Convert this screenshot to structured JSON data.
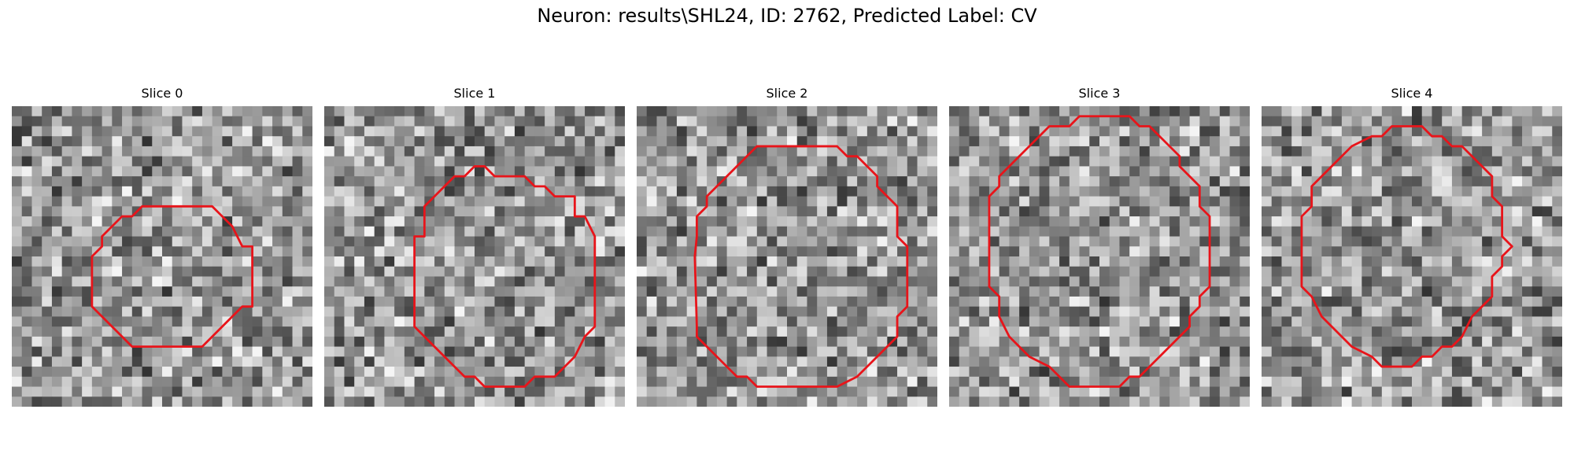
{
  "figure": {
    "title": "Neuron: results\\SHL24, ID: 2762, Predicted Label: CV"
  },
  "panels": [
    {
      "title": "Slice 0",
      "seed": 11,
      "contour": [
        [
          0.2667,
          0.6
        ],
        [
          0.2667,
          0.5
        ],
        [
          0.3,
          0.4667
        ],
        [
          0.3,
          0.4333
        ],
        [
          0.3333,
          0.4
        ],
        [
          0.3667,
          0.3667
        ],
        [
          0.4,
          0.3667
        ],
        [
          0.4333,
          0.3333
        ],
        [
          0.5333,
          0.3333
        ],
        [
          0.6,
          0.3333
        ],
        [
          0.6667,
          0.3333
        ],
        [
          0.7,
          0.3667
        ],
        [
          0.7333,
          0.4
        ],
        [
          0.7667,
          0.4667
        ],
        [
          0.8,
          0.4667
        ],
        [
          0.8,
          0.6667
        ],
        [
          0.7667,
          0.6667
        ],
        [
          0.7333,
          0.7
        ],
        [
          0.7,
          0.7333
        ],
        [
          0.6667,
          0.7667
        ],
        [
          0.6333,
          0.8
        ],
        [
          0.5,
          0.8
        ],
        [
          0.4,
          0.8
        ],
        [
          0.3667,
          0.7667
        ],
        [
          0.3333,
          0.7333
        ],
        [
          0.3,
          0.7
        ],
        [
          0.2667,
          0.6667
        ]
      ]
    },
    {
      "title": "Slice 1",
      "seed": 23,
      "contour": [
        [
          0.3,
          0.6
        ],
        [
          0.3,
          0.4333
        ],
        [
          0.3333,
          0.4333
        ],
        [
          0.3333,
          0.3333
        ],
        [
          0.3667,
          0.3
        ],
        [
          0.4,
          0.2667
        ],
        [
          0.4333,
          0.2333
        ],
        [
          0.4667,
          0.2333
        ],
        [
          0.5,
          0.2
        ],
        [
          0.5333,
          0.2
        ],
        [
          0.5667,
          0.2333
        ],
        [
          0.6667,
          0.2333
        ],
        [
          0.7,
          0.2667
        ],
        [
          0.7333,
          0.2667
        ],
        [
          0.7667,
          0.3
        ],
        [
          0.8333,
          0.3
        ],
        [
          0.8333,
          0.3667
        ],
        [
          0.8667,
          0.3667
        ],
        [
          0.9,
          0.4333
        ],
        [
          0.9,
          0.5
        ],
        [
          0.9,
          0.5333
        ],
        [
          0.9,
          0.7333
        ],
        [
          0.8667,
          0.7667
        ],
        [
          0.8333,
          0.8333
        ],
        [
          0.8,
          0.8667
        ],
        [
          0.7667,
          0.9
        ],
        [
          0.7,
          0.9
        ],
        [
          0.6667,
          0.9333
        ],
        [
          0.5333,
          0.9333
        ],
        [
          0.5,
          0.9
        ],
        [
          0.4667,
          0.9
        ],
        [
          0.4333,
          0.8667
        ],
        [
          0.4,
          0.8333
        ],
        [
          0.3667,
          0.8
        ],
        [
          0.3333,
          0.7667
        ],
        [
          0.3,
          0.7333
        ]
      ]
    },
    {
      "title": "Slice 2",
      "seed": 37,
      "contour": [
        [
          0.2,
          0.4333
        ],
        [
          0.2,
          0.3667
        ],
        [
          0.2333,
          0.3333
        ],
        [
          0.2333,
          0.3
        ],
        [
          0.2667,
          0.2667
        ],
        [
          0.3,
          0.2333
        ],
        [
          0.3333,
          0.2
        ],
        [
          0.3667,
          0.1667
        ],
        [
          0.4,
          0.1333
        ],
        [
          0.4333,
          0.1333
        ],
        [
          0.4667,
          0.1333
        ],
        [
          0.6667,
          0.1333
        ],
        [
          0.7,
          0.1667
        ],
        [
          0.7333,
          0.1667
        ],
        [
          0.7667,
          0.2
        ],
        [
          0.8,
          0.2333
        ],
        [
          0.8,
          0.2667
        ],
        [
          0.8333,
          0.3
        ],
        [
          0.8667,
          0.3333
        ],
        [
          0.8667,
          0.4333
        ],
        [
          0.9,
          0.4667
        ],
        [
          0.9,
          0.6667
        ],
        [
          0.8667,
          0.7
        ],
        [
          0.8667,
          0.7667
        ],
        [
          0.8333,
          0.8
        ],
        [
          0.8,
          0.8333
        ],
        [
          0.7667,
          0.8667
        ],
        [
          0.7333,
          0.9
        ],
        [
          0.6667,
          0.9333
        ],
        [
          0.5333,
          0.9333
        ],
        [
          0.4,
          0.9333
        ],
        [
          0.3667,
          0.9
        ],
        [
          0.3333,
          0.9
        ],
        [
          0.3,
          0.8667
        ],
        [
          0.2667,
          0.8333
        ],
        [
          0.2333,
          0.8
        ],
        [
          0.2,
          0.7667
        ],
        [
          0.2,
          0.7333
        ],
        [
          0.1933,
          0.5
        ]
      ]
    },
    {
      "title": "Slice 3",
      "seed": 53,
      "contour": [
        [
          0.1333,
          0.5667
        ],
        [
          0.1333,
          0.3
        ],
        [
          0.1667,
          0.2667
        ],
        [
          0.1667,
          0.2333
        ],
        [
          0.2,
          0.2
        ],
        [
          0.2333,
          0.1667
        ],
        [
          0.2667,
          0.1333
        ],
        [
          0.3,
          0.1
        ],
        [
          0.3333,
          0.0667
        ],
        [
          0.4,
          0.0667
        ],
        [
          0.4333,
          0.0333
        ],
        [
          0.6,
          0.0333
        ],
        [
          0.6333,
          0.0667
        ],
        [
          0.6667,
          0.0667
        ],
        [
          0.7,
          0.1
        ],
        [
          0.7333,
          0.1333
        ],
        [
          0.7667,
          0.1667
        ],
        [
          0.7667,
          0.2
        ],
        [
          0.8,
          0.2333
        ],
        [
          0.8333,
          0.2667
        ],
        [
          0.8333,
          0.3333
        ],
        [
          0.8667,
          0.3667
        ],
        [
          0.8667,
          0.6
        ],
        [
          0.8333,
          0.6333
        ],
        [
          0.8333,
          0.6667
        ],
        [
          0.8,
          0.7
        ],
        [
          0.8,
          0.7333
        ],
        [
          0.7667,
          0.7667
        ],
        [
          0.7333,
          0.8
        ],
        [
          0.7,
          0.8333
        ],
        [
          0.6667,
          0.8667
        ],
        [
          0.6333,
          0.9
        ],
        [
          0.6,
          0.9
        ],
        [
          0.5667,
          0.9333
        ],
        [
          0.4,
          0.9333
        ],
        [
          0.3667,
          0.9
        ],
        [
          0.3333,
          0.8667
        ],
        [
          0.2667,
          0.8333
        ],
        [
          0.2333,
          0.8
        ],
        [
          0.2,
          0.7667
        ],
        [
          0.1667,
          0.7
        ],
        [
          0.1667,
          0.6333
        ],
        [
          0.1333,
          0.6
        ]
      ]
    },
    {
      "title": "Slice 4",
      "seed": 71,
      "contour": [
        [
          0.1333,
          0.5667
        ],
        [
          0.1333,
          0.3667
        ],
        [
          0.1667,
          0.3333
        ],
        [
          0.1667,
          0.2667
        ],
        [
          0.2,
          0.2333
        ],
        [
          0.2333,
          0.2
        ],
        [
          0.2667,
          0.1667
        ],
        [
          0.3,
          0.1333
        ],
        [
          0.3667,
          0.1
        ],
        [
          0.4,
          0.1
        ],
        [
          0.4333,
          0.0667
        ],
        [
          0.5333,
          0.0667
        ],
        [
          0.5667,
          0.1
        ],
        [
          0.6,
          0.1
        ],
        [
          0.6333,
          0.1333
        ],
        [
          0.6667,
          0.1333
        ],
        [
          0.7,
          0.1667
        ],
        [
          0.7333,
          0.2
        ],
        [
          0.7667,
          0.2333
        ],
        [
          0.7667,
          0.3
        ],
        [
          0.8,
          0.3333
        ],
        [
          0.8,
          0.4333
        ],
        [
          0.8333,
          0.4667
        ],
        [
          0.8,
          0.5
        ],
        [
          0.8,
          0.5333
        ],
        [
          0.7667,
          0.5667
        ],
        [
          0.7667,
          0.6333
        ],
        [
          0.7333,
          0.6667
        ],
        [
          0.7,
          0.7
        ],
        [
          0.6667,
          0.7667
        ],
        [
          0.6333,
          0.8
        ],
        [
          0.6,
          0.8
        ],
        [
          0.5667,
          0.8333
        ],
        [
          0.5333,
          0.8333
        ],
        [
          0.5,
          0.8667
        ],
        [
          0.4,
          0.8667
        ],
        [
          0.3667,
          0.8333
        ],
        [
          0.3,
          0.8
        ],
        [
          0.2667,
          0.7667
        ],
        [
          0.2333,
          0.7333
        ],
        [
          0.2,
          0.7
        ],
        [
          0.1667,
          0.6333
        ],
        [
          0.1333,
          0.6
        ]
      ]
    }
  ],
  "colors": {
    "contour": "#e8141a",
    "background": "#ffffff"
  }
}
